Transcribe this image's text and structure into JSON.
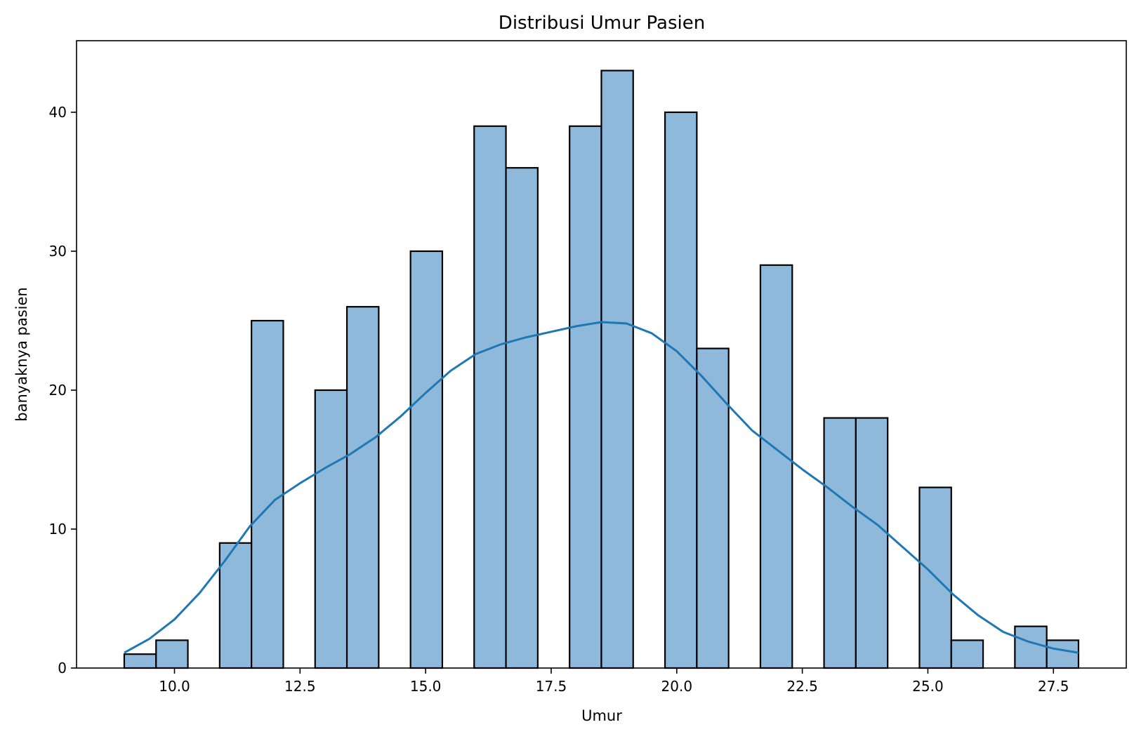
{
  "chart_data": {
    "type": "bar",
    "title": "Distribusi Umur Pasien",
    "xlabel": "Umur",
    "ylabel": "banyaknya pasien",
    "xlim": [
      8.05,
      28.95
    ],
    "ylim": [
      0,
      45.15
    ],
    "x_ticks": [
      10.0,
      12.5,
      15.0,
      17.5,
      20.0,
      22.5,
      25.0,
      27.5
    ],
    "x_tick_labels": [
      "10.0",
      "12.5",
      "15.0",
      "17.5",
      "20.0",
      "22.5",
      "25.0",
      "27.5"
    ],
    "y_ticks": [
      0,
      10,
      20,
      30,
      40
    ],
    "y_tick_labels": [
      "0",
      "10",
      "20",
      "30",
      "40"
    ],
    "bin_start": 9,
    "bin_width": 0.6333,
    "bin_counts": [
      1,
      2,
      0,
      9,
      25,
      0,
      20,
      26,
      0,
      30,
      0,
      39,
      36,
      0,
      39,
      43,
      0,
      40,
      23,
      0,
      29,
      0,
      18,
      18,
      0,
      13,
      2,
      0,
      3,
      2
    ],
    "kde": {
      "x": [
        9.0,
        9.5,
        10.0,
        10.5,
        11.0,
        11.5,
        12.0,
        12.5,
        13.0,
        13.5,
        14.0,
        14.5,
        15.0,
        15.5,
        16.0,
        16.5,
        17.0,
        17.5,
        18.0,
        18.5,
        19.0,
        19.5,
        20.0,
        20.5,
        21.0,
        21.5,
        22.0,
        22.5,
        23.0,
        23.5,
        24.0,
        24.5,
        25.0,
        25.5,
        26.0,
        26.5,
        27.0,
        27.5,
        28.0
      ],
      "y": [
        1.1,
        2.1,
        3.5,
        5.4,
        7.7,
        10.2,
        12.1,
        13.3,
        14.4,
        15.4,
        16.6,
        18.1,
        19.8,
        21.4,
        22.6,
        23.3,
        23.8,
        24.2,
        24.6,
        24.9,
        24.8,
        24.1,
        22.8,
        21.0,
        19.0,
        17.1,
        15.7,
        14.3,
        13.0,
        11.6,
        10.3,
        8.7,
        7.1,
        5.3,
        3.8,
        2.6,
        1.9,
        1.4,
        1.1
      ]
    },
    "colors": {
      "bar_fill": "#8fb9da",
      "bar_edge": "#000000",
      "kde_line": "#1f77b4"
    },
    "grid": false,
    "legend": "none"
  }
}
